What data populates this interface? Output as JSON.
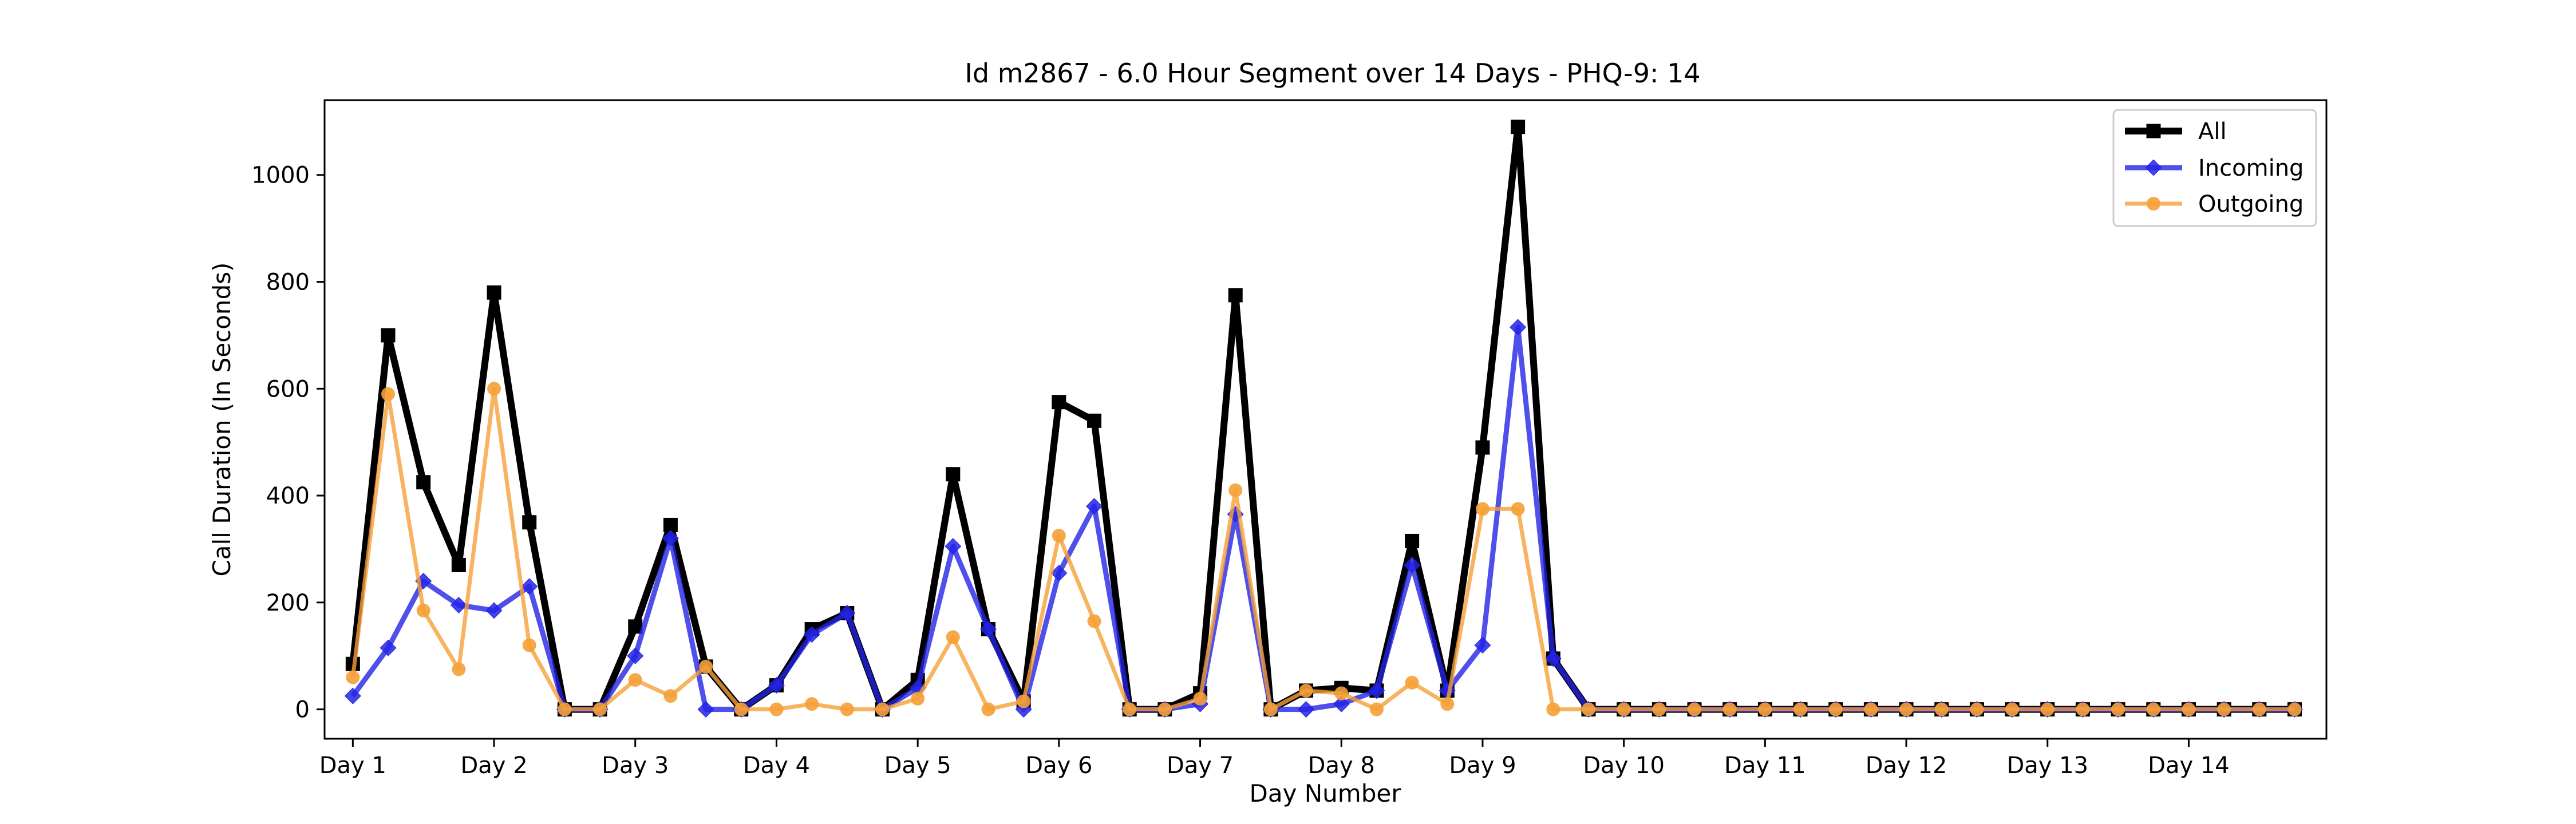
{
  "chart_data": {
    "type": "line",
    "title": "Id m2867 - 6.0 Hour Segment over 14 Days - PHQ-9: 14",
    "xlabel": "Day Number",
    "ylabel": "Call Duration (In Seconds)",
    "xlim": [
      -0.4,
      27.95
    ],
    "ylim": [
      -55,
      1140
    ],
    "y_ticks": [
      0,
      200,
      400,
      600,
      800,
      1000
    ],
    "x_ticks": [
      {
        "x": 0,
        "label": "Day 1"
      },
      {
        "x": 2,
        "label": "Day 2"
      },
      {
        "x": 4,
        "label": "Day 3"
      },
      {
        "x": 6,
        "label": "Day 4"
      },
      {
        "x": 8,
        "label": "Day 5"
      },
      {
        "x": 10,
        "label": "Day 6"
      },
      {
        "x": 12,
        "label": "Day 7"
      },
      {
        "x": 14,
        "label": "Day 8"
      },
      {
        "x": 16,
        "label": "Day 9"
      },
      {
        "x": 18,
        "label": "Day 10"
      },
      {
        "x": 20,
        "label": "Day 11"
      },
      {
        "x": 22,
        "label": "Day 12"
      },
      {
        "x": 24,
        "label": "Day 13"
      },
      {
        "x": 26,
        "label": "Day 14"
      }
    ],
    "x": [
      0,
      0.5,
      1,
      1.5,
      2,
      2.5,
      3,
      3.5,
      4,
      4.5,
      5,
      5.5,
      6,
      6.5,
      7,
      7.5,
      8,
      8.5,
      9,
      9.5,
      10,
      10.5,
      11,
      11.5,
      12,
      12.5,
      13,
      13.5,
      14,
      14.5,
      15,
      15.5,
      16,
      16.5,
      17,
      17.5,
      18,
      18.5,
      19,
      19.5,
      20,
      20.5,
      21,
      21.5,
      22,
      22.5,
      23,
      23.5,
      24,
      24.5,
      25,
      25.5,
      26,
      26.5,
      27,
      27.5
    ],
    "legend_position": "top-right",
    "grid": false,
    "series": [
      {
        "name": "All",
        "color": "#000000",
        "marker": "square",
        "values": [
          85,
          700,
          425,
          270,
          780,
          350,
          0,
          0,
          155,
          345,
          80,
          0,
          45,
          150,
          180,
          0,
          55,
          440,
          150,
          15,
          575,
          540,
          0,
          0,
          30,
          775,
          0,
          35,
          40,
          35,
          315,
          35,
          490,
          1090,
          95,
          0,
          0,
          0,
          0,
          0,
          0,
          0,
          0,
          0,
          0,
          0,
          0,
          0,
          0,
          0,
          0,
          0,
          0,
          0,
          0,
          0
        ]
      },
      {
        "name": "Incoming",
        "color": "#2323e6",
        "marker": "diamond",
        "values": [
          25,
          115,
          240,
          195,
          185,
          230,
          0,
          0,
          100,
          320,
          0,
          0,
          45,
          140,
          180,
          0,
          40,
          305,
          150,
          0,
          255,
          380,
          0,
          0,
          10,
          365,
          0,
          0,
          10,
          35,
          270,
          35,
          120,
          715,
          95,
          0,
          0,
          0,
          0,
          0,
          0,
          0,
          0,
          0,
          0,
          0,
          0,
          0,
          0,
          0,
          0,
          0,
          0,
          0,
          0,
          0
        ]
      },
      {
        "name": "Outgoing",
        "color": "#f5a037",
        "marker": "circle",
        "values": [
          60,
          590,
          185,
          75,
          600,
          120,
          0,
          0,
          55,
          25,
          80,
          0,
          0,
          10,
          0,
          0,
          20,
          135,
          0,
          15,
          325,
          165,
          0,
          0,
          20,
          410,
          0,
          35,
          30,
          0,
          50,
          10,
          375,
          375,
          0,
          0,
          0,
          0,
          0,
          0,
          0,
          0,
          0,
          0,
          0,
          0,
          0,
          0,
          0,
          0,
          0,
          0,
          0,
          0,
          0,
          0
        ]
      }
    ]
  }
}
